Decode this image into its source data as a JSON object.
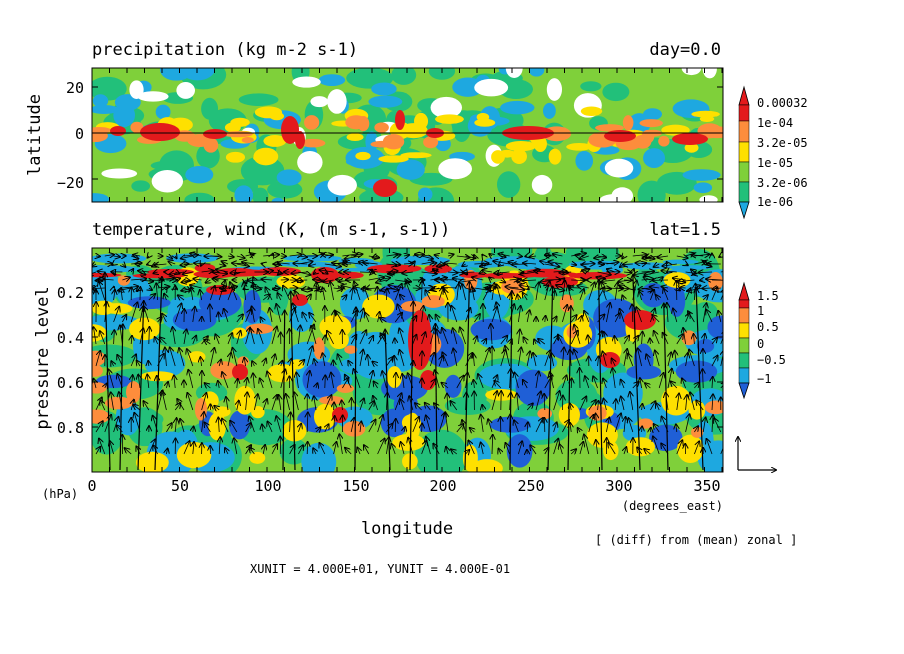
{
  "chart_data": [
    {
      "type": "heatmap",
      "title": "precipitation (kg m-2 s-1)",
      "subtitle": "day=0.0",
      "ylabel": "latitude",
      "ylim": [
        -28,
        28
      ],
      "yticks": [
        "20",
        "0",
        "−20"
      ],
      "ytick_values": [
        20,
        0,
        -20
      ],
      "reference_line_y": 0,
      "colorbar": {
        "labels": [
          "0.00032",
          "1e-04",
          "3.2e-05",
          "1e-05",
          "3.2e-06",
          "1e-06"
        ],
        "colors": [
          "#e31a1c",
          "#fd8d3c",
          "#fee000",
          "#7fd03a",
          "#22c07a",
          "#1ea8e0"
        ],
        "extend": "both"
      }
    },
    {
      "type": "heatmap",
      "title": "temperature, wind (K, (m s-1, s-1))",
      "subtitle": "lat=1.5",
      "ylabel": "pressure level",
      "yunit": "(hPa)",
      "xlabel": "longitude",
      "xunit": "(degrees_east)",
      "xlim": [
        0,
        360
      ],
      "ylim": [
        1.0,
        0.0
      ],
      "xticks": [
        "0",
        "50",
        "100",
        "150",
        "200",
        "250",
        "300",
        "350"
      ],
      "xtick_values": [
        0,
        50,
        100,
        150,
        200,
        250,
        300,
        350
      ],
      "yticks": [
        "0.2",
        "0.4",
        "0.6",
        "0.8"
      ],
      "ytick_values": [
        0.2,
        0.4,
        0.6,
        0.8
      ],
      "colorbar": {
        "labels": [
          "1.5",
          "1",
          "0.5",
          "0",
          "−0.5",
          "−1"
        ],
        "colors": [
          "#e31a1c",
          "#fd8d3c",
          "#fee000",
          "#7fd03a",
          "#22c07a",
          "#1ea8e0",
          "#1f5fd6"
        ],
        "extend": "both"
      },
      "vectors": "wind arrows overlaid"
    }
  ],
  "annotations": {
    "diff_note": "[ (diff) from (mean) zonal ]",
    "unit_note": "XUNIT = 4.000E+01, YUNIT = 4.000E-01"
  }
}
